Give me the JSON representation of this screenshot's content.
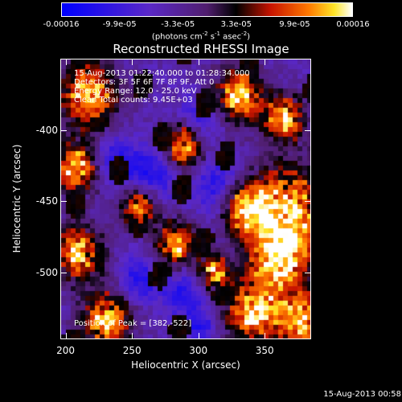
{
  "colorbar": {
    "tick_labels": [
      "-0.00016",
      "-9.9e-05",
      "-3.3e-05",
      "3.3e-05",
      "9.9e-05",
      "0.00016"
    ],
    "units_prefix": "(photons cm",
    "units_exp1": "-2",
    "units_mid1": " s",
    "units_exp2": "-1",
    "units_mid2": " asec",
    "units_exp3": "-2",
    "units_suffix": ")"
  },
  "plot": {
    "title": "Reconstructed RHESSI Image",
    "xlabel": "Heliocentric X (arcsec)",
    "ylabel": "Heliocentric Y (arcsec)",
    "xticks": [
      "200",
      "250",
      "300",
      "350"
    ],
    "yticks": [
      "-400",
      "-450",
      "-500"
    ],
    "x_range": [
      196,
      385
    ],
    "y_range": [
      -547,
      -350
    ],
    "colormap": "blue-purple-red-yellow-white",
    "info_lines": [
      "15-Aug-2013 01:22:40.000 to 01:28:34.000",
      "Detectors: 3F 5F 6F 7F 8F 9F, Att 0",
      "Energy Range: 12.0 - 25.0 keV",
      "Clean     Total counts: 9.45E+03"
    ],
    "peak_text": "Position of Peak = [382,-522]"
  },
  "timestamp": "15-Aug-2013 00:58"
}
